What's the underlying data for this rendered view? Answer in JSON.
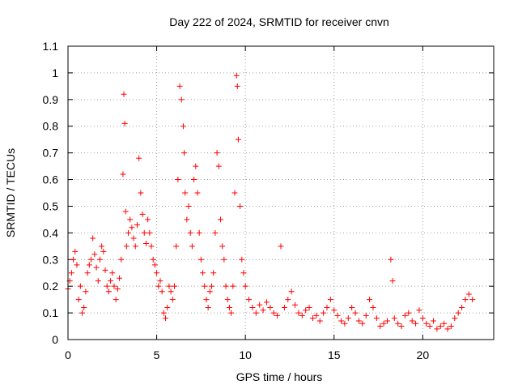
{
  "chart_data": {
    "type": "scatter",
    "title": "Day 222 of 2024, SRMTID for receiver cnvn",
    "xlabel": "GPS time / hours",
    "ylabel": "SRMTID / TECUs",
    "xlim": [
      0,
      24
    ],
    "ylim": [
      0,
      1.1
    ],
    "xticks": [
      0,
      5,
      10,
      15,
      20
    ],
    "xtick_labels": [
      "0",
      "5",
      "10",
      "15",
      "20"
    ],
    "yticks": [
      0,
      0.1,
      0.2,
      0.3,
      0.4,
      0.5,
      0.6,
      0.7,
      0.8,
      0.9,
      1.0,
      1.1
    ],
    "ytick_labels": [
      "0",
      "0.1",
      "0.2",
      "0.3",
      "0.4",
      "0.5",
      "0.6",
      "0.7",
      "0.8",
      "0.9",
      "1",
      "1.1"
    ],
    "grid": true,
    "marker": "+",
    "series": [
      {
        "name": "SRMTID",
        "color": "#ff0000",
        "x": [
          0.0,
          0.1,
          0.2,
          0.3,
          0.4,
          0.5,
          0.6,
          0.7,
          0.8,
          0.9,
          1.0,
          1.1,
          1.2,
          1.3,
          1.4,
          1.5,
          1.6,
          1.7,
          1.8,
          1.9,
          2.0,
          2.1,
          2.2,
          2.3,
          2.4,
          2.5,
          2.6,
          2.7,
          2.8,
          2.9,
          3.0,
          3.1,
          3.15,
          3.2,
          3.25,
          3.3,
          3.4,
          3.5,
          3.6,
          3.7,
          3.8,
          3.9,
          4.0,
          4.1,
          4.2,
          4.3,
          4.4,
          4.5,
          4.6,
          4.7,
          4.8,
          4.9,
          5.0,
          5.1,
          5.2,
          5.3,
          5.4,
          5.5,
          5.6,
          5.7,
          5.8,
          5.9,
          6.0,
          6.1,
          6.2,
          6.3,
          6.4,
          6.5,
          6.55,
          6.6,
          6.7,
          6.8,
          6.9,
          7.0,
          7.1,
          7.2,
          7.3,
          7.4,
          7.5,
          7.6,
          7.7,
          7.8,
          7.9,
          8.0,
          8.1,
          8.2,
          8.3,
          8.4,
          8.5,
          8.6,
          8.7,
          8.8,
          8.9,
          9.0,
          9.1,
          9.2,
          9.3,
          9.4,
          9.5,
          9.55,
          9.6,
          9.7,
          9.8,
          9.9,
          10.0,
          10.2,
          10.4,
          10.6,
          10.8,
          11.0,
          11.2,
          11.4,
          11.6,
          11.8,
          12.0,
          12.2,
          12.4,
          12.6,
          12.8,
          13.0,
          13.2,
          13.4,
          13.6,
          13.8,
          14.0,
          14.2,
          14.4,
          14.6,
          14.8,
          15.0,
          15.2,
          15.4,
          15.6,
          15.8,
          16.0,
          16.2,
          16.4,
          16.6,
          16.8,
          17.0,
          17.2,
          17.4,
          17.6,
          17.8,
          18.0,
          18.2,
          18.3,
          18.4,
          18.6,
          18.8,
          19.0,
          19.2,
          19.4,
          19.6,
          19.8,
          20.0,
          20.2,
          20.4,
          20.6,
          20.8,
          21.0,
          21.2,
          21.4,
          21.6,
          21.8,
          22.0,
          22.2,
          22.4,
          22.6,
          22.8
        ],
        "y": [
          0.19,
          0.22,
          0.25,
          0.3,
          0.33,
          0.28,
          0.15,
          0.2,
          0.1,
          0.12,
          0.18,
          0.25,
          0.28,
          0.3,
          0.38,
          0.32,
          0.27,
          0.22,
          0.3,
          0.35,
          0.33,
          0.26,
          0.2,
          0.18,
          0.22,
          0.25,
          0.2,
          0.15,
          0.19,
          0.23,
          0.3,
          0.62,
          0.92,
          0.81,
          0.48,
          0.35,
          0.4,
          0.45,
          0.42,
          0.38,
          0.35,
          0.43,
          0.68,
          0.55,
          0.47,
          0.4,
          0.36,
          0.45,
          0.4,
          0.35,
          0.3,
          0.28,
          0.25,
          0.2,
          0.22,
          0.18,
          0.1,
          0.08,
          0.12,
          0.2,
          0.18,
          0.15,
          0.2,
          0.35,
          0.6,
          0.95,
          0.9,
          0.8,
          0.7,
          0.55,
          0.45,
          0.5,
          0.4,
          0.35,
          0.6,
          0.65,
          0.55,
          0.4,
          0.3,
          0.25,
          0.2,
          0.15,
          0.12,
          0.18,
          0.2,
          0.25,
          0.4,
          0.7,
          0.65,
          0.45,
          0.35,
          0.3,
          0.2,
          0.15,
          0.12,
          0.1,
          0.2,
          0.55,
          0.99,
          0.95,
          0.75,
          0.5,
          0.3,
          0.25,
          0.2,
          0.15,
          0.12,
          0.1,
          0.13,
          0.11,
          0.14,
          0.12,
          0.1,
          0.09,
          0.35,
          0.12,
          0.15,
          0.18,
          0.13,
          0.1,
          0.09,
          0.11,
          0.12,
          0.08,
          0.09,
          0.07,
          0.1,
          0.12,
          0.15,
          0.11,
          0.09,
          0.07,
          0.06,
          0.08,
          0.12,
          0.1,
          0.07,
          0.06,
          0.09,
          0.15,
          0.12,
          0.08,
          0.05,
          0.06,
          0.07,
          0.3,
          0.22,
          0.08,
          0.06,
          0.05,
          0.09,
          0.1,
          0.07,
          0.06,
          0.11,
          0.08,
          0.06,
          0.05,
          0.07,
          0.04,
          0.05,
          0.06,
          0.04,
          0.05,
          0.08,
          0.1,
          0.12,
          0.15,
          0.17,
          0.15
        ]
      }
    ]
  }
}
